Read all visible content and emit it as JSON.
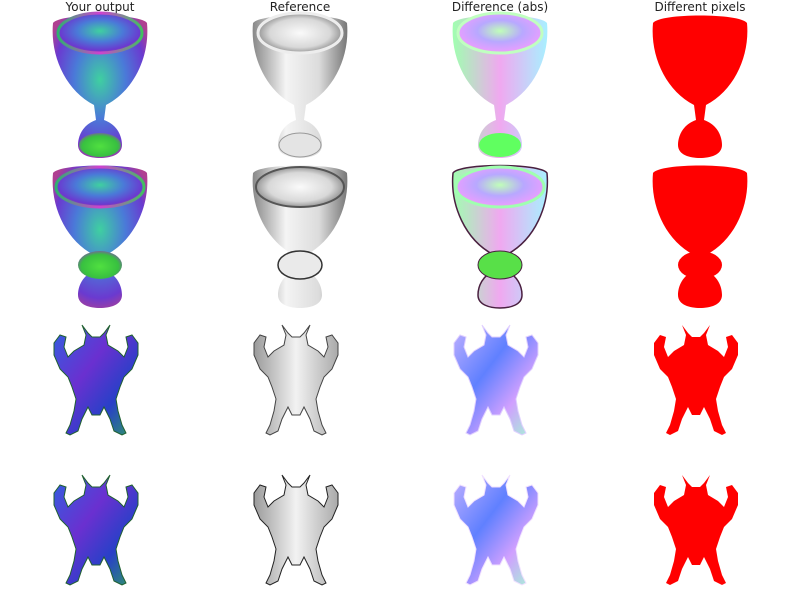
{
  "columns": [
    {
      "label": "Your output"
    },
    {
      "label": "Reference"
    },
    {
      "label": "Difference (abs)"
    },
    {
      "label": "Different pixels"
    }
  ],
  "rows": [
    {
      "model": "goblet"
    },
    {
      "model": "goblet"
    },
    {
      "model": "armadillo"
    },
    {
      "model": "armadillo"
    }
  ],
  "colors": {
    "diff_mask": "#ff0000",
    "background": "#ffffff"
  }
}
